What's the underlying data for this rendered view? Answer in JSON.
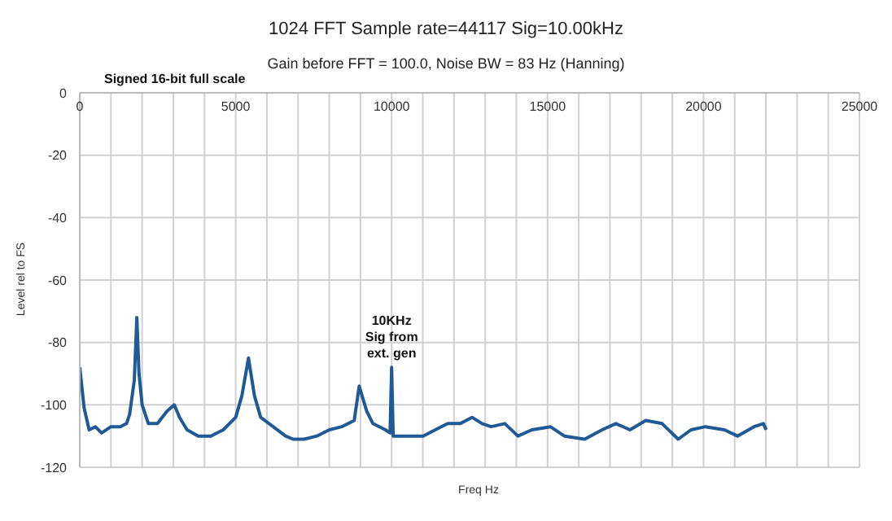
{
  "chart_data": {
    "type": "line",
    "title": "1024 FFT Sample rate=44117 Sig=10.00kHz",
    "subtitle": "Gain before FFT = 100.0,  Noise BW = 83 Hz (Hanning)",
    "xlabel": "Freq Hz",
    "ylabel": "Level rel to FS",
    "annotations": [
      "Signed 16-bit full scale",
      {
        "text": "10KHz\nSig from\next. gen",
        "x": 10000,
        "y": -88
      }
    ],
    "xlim": [
      0,
      25000
    ],
    "xticks": [
      0,
      {
        "value": 1000,
        "label": null
      },
      {
        "value": 2000,
        "label": null
      },
      {
        "value": 3000,
        "label": null
      },
      {
        "value": 4000,
        "label": null
      },
      5000,
      {
        "value": 6000,
        "label": null
      },
      {
        "value": 7000,
        "label": null
      },
      {
        "value": 8000,
        "label": null
      },
      {
        "value": 9000,
        "label": null
      },
      10000,
      {
        "value": 11000,
        "label": null
      },
      {
        "value": 12000,
        "label": null
      },
      {
        "value": 13000,
        "label": null
      },
      {
        "value": 14000,
        "label": null
      },
      15000,
      {
        "value": 16000,
        "label": null
      },
      {
        "value": 17000,
        "label": null
      },
      {
        "value": 18000,
        "label": null
      },
      {
        "value": 19000,
        "label": null
      },
      20000,
      {
        "value": 21000,
        "label": null
      },
      {
        "value": 22000,
        "label": null
      },
      {
        "value": 23000,
        "label": null
      },
      {
        "value": 24000,
        "label": null
      },
      25000
    ],
    "ylim": [
      -120,
      0
    ],
    "yticks": [
      -120,
      -100,
      -80,
      -60,
      -40,
      -20,
      0
    ],
    "grid": true,
    "marker": "none",
    "line_style": "solid",
    "x": [
      0,
      140,
      300,
      500,
      700,
      1000,
      1300,
      1500,
      1600,
      1750,
      1830,
      1900,
      2000,
      2200,
      2490,
      2800,
      3030,
      3200,
      3440,
      3800,
      4200,
      4600,
      5000,
      5200,
      5410,
      5600,
      5800,
      6200,
      6600,
      6840,
      7200,
      7600,
      8000,
      8400,
      8800,
      8960,
      9200,
      9400,
      9800,
      9950,
      10000,
      10050,
      10500,
      11010,
      11400,
      11800,
      12200,
      12580,
      12900,
      13190,
      13630,
      14050,
      14500,
      15090,
      15540,
      16190,
      16750,
      17190,
      17640,
      18150,
      18670,
      19190,
      19600,
      20060,
      20670,
      21090,
      21620,
      21920,
      22010
    ],
    "series": [
      {
        "color": "#1f5a96",
        "values": [
          -88,
          -101,
          -108,
          -107,
          -109,
          -107,
          -107,
          -106,
          -103,
          -92,
          -72,
          -90,
          -100,
          -106,
          -106,
          -102,
          -100,
          -104,
          -108,
          -110,
          -110,
          -108,
          -104,
          -97,
          -85,
          -97,
          -104,
          -107,
          -110,
          -111,
          -111,
          -110,
          -108,
          -107,
          -105,
          -94,
          -102,
          -106,
          -108,
          -109,
          -88,
          -110,
          -110,
          -110,
          -108,
          -106,
          -106,
          -104,
          -106,
          -107,
          -106,
          -110,
          -108,
          -107,
          -110,
          -111,
          -108,
          -106,
          -108,
          -105,
          -106,
          -111,
          -108,
          -107,
          -108,
          -110,
          -107,
          -106,
          -108
        ]
      }
    ]
  }
}
